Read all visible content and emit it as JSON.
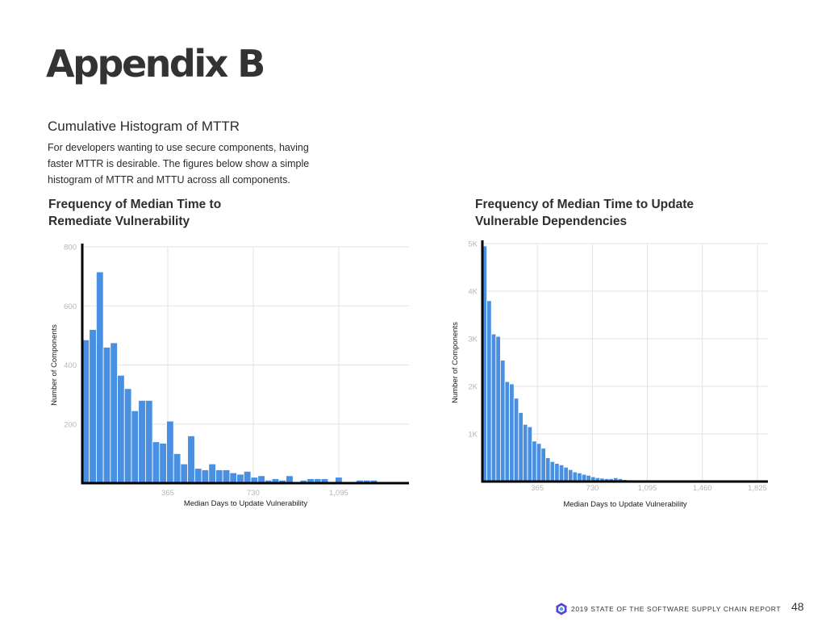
{
  "page": {
    "title": "Appendix B",
    "section_title": "Cumulative Histogram of MTTR",
    "intro": "For developers wanting to use secure components, having faster MTTR is desirable. The figures below show a simple histogram of MTTR and MTTU across all components.",
    "footer": "2019 STATE OF THE SOFTWARE SUPPLY CHAIN REPORT",
    "page_number": "48",
    "accent_color": "#4a90e2",
    "logo_icon": "hexagon-logo-icon"
  },
  "chart_data": [
    {
      "type": "bar",
      "title": "Frequency of Median Time to\nRemediate Vulnerability",
      "xlabel": "Median Days to Update Vulnerability",
      "ylabel": "Number of Components",
      "xlim": [
        0,
        1395
      ],
      "ylim": [
        0,
        800
      ],
      "x_ticks": [
        365,
        730,
        1095
      ],
      "x_tick_labels": [
        "365",
        "730",
        "1,095"
      ],
      "y_ticks": [
        200,
        400,
        600,
        800
      ],
      "y_tick_labels": [
        "200",
        "400",
        "600",
        "800"
      ],
      "grid": true,
      "bin_width": 30,
      "bin_starts": [
        0,
        30,
        60,
        90,
        120,
        150,
        180,
        210,
        240,
        270,
        300,
        330,
        360,
        390,
        420,
        450,
        480,
        510,
        540,
        570,
        600,
        630,
        660,
        690,
        720,
        750,
        780,
        810,
        840,
        870,
        900,
        930,
        960,
        990,
        1020,
        1050,
        1080,
        1110,
        1140,
        1170,
        1200,
        1230,
        1260,
        1290
      ],
      "values": [
        485,
        520,
        715,
        460,
        475,
        365,
        320,
        245,
        280,
        280,
        140,
        135,
        210,
        100,
        65,
        160,
        50,
        45,
        65,
        45,
        45,
        35,
        30,
        40,
        20,
        25,
        10,
        15,
        10,
        25,
        5,
        10,
        15,
        15,
        15,
        0,
        20,
        5,
        5,
        10,
        10,
        10,
        0,
        0
      ],
      "color": "#4a90e2"
    },
    {
      "type": "bar",
      "title": "Frequency of Median Time to Update\nVulnerable Dependencies",
      "xlabel": "Median Days to Update Vulnerability",
      "ylabel": "Number of Components",
      "xlim": [
        0,
        1895
      ],
      "ylim": [
        0,
        5000
      ],
      "x_ticks": [
        365,
        730,
        1095,
        1460,
        1825
      ],
      "x_tick_labels": [
        "365",
        "730",
        "1,095",
        "1,460",
        "1,825"
      ],
      "y_ticks": [
        1000,
        2000,
        3000,
        4000,
        5000
      ],
      "y_tick_labels": [
        "1K",
        "2K",
        "3K",
        "4K",
        "5K"
      ],
      "grid": true,
      "bin_width": 30,
      "bin_starts": [
        0,
        30,
        60,
        90,
        120,
        150,
        180,
        210,
        240,
        270,
        300,
        330,
        360,
        390,
        420,
        450,
        480,
        510,
        540,
        570,
        600,
        630,
        660,
        690,
        720,
        750,
        780,
        810,
        840,
        870,
        900,
        930,
        960,
        990,
        1020,
        1050,
        1080,
        1110,
        1140,
        1170,
        1200,
        1230,
        1260,
        1290
      ],
      "values": [
        4950,
        3800,
        3100,
        3050,
        2550,
        2100,
        2050,
        1750,
        1450,
        1200,
        1150,
        850,
        800,
        700,
        500,
        420,
        380,
        350,
        300,
        250,
        200,
        180,
        150,
        130,
        100,
        80,
        70,
        60,
        60,
        80,
        60,
        40,
        30,
        20,
        10,
        10,
        10,
        5,
        10,
        20,
        30,
        20,
        10,
        5
      ],
      "color": "#4a90e2"
    }
  ]
}
